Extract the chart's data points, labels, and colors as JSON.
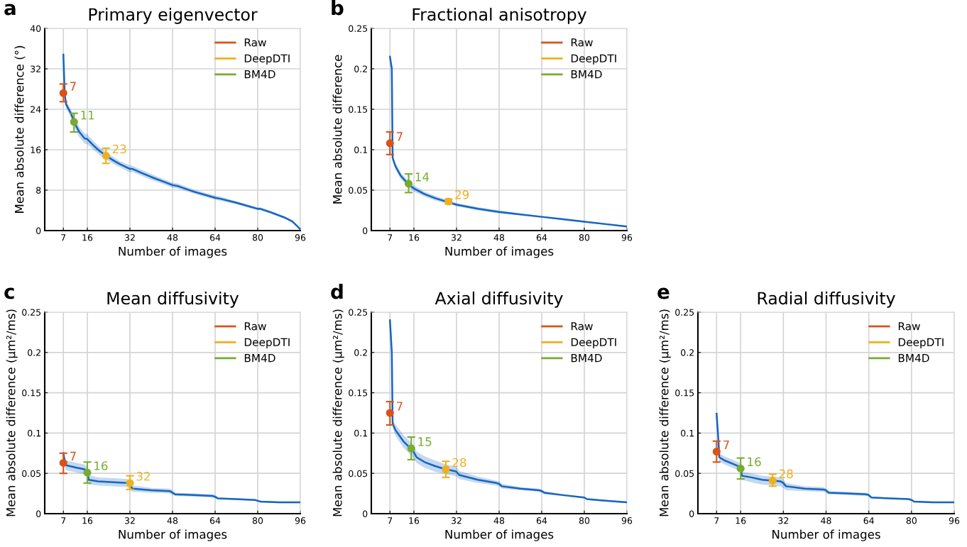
{
  "chart_data": [
    {
      "type": "line",
      "title": "Primary eigenvector",
      "xlabel": "Number of images",
      "ylabel": "Mean absolute difference (°)",
      "xlim": [
        0,
        96
      ],
      "ylim": [
        0,
        40
      ],
      "xticks": [
        7,
        16,
        32,
        48,
        64,
        80,
        96
      ],
      "yticks": [
        0,
        8,
        16,
        24,
        32,
        40
      ],
      "grid": true,
      "legend": "top right",
      "annotations": [
        "a",
        {
          "text": "7",
          "x": 7,
          "y": 27.2
        },
        {
          "text": "11",
          "x": 11,
          "y": 21.5
        },
        {
          "text": "23",
          "x": 23,
          "y": 14.8
        }
      ],
      "series": [
        {
          "color": "#1565c0",
          "marker": "none",
          "line_style": "solid",
          "x": [
            7,
            7.5,
            8,
            10,
            11,
            13,
            15,
            16,
            18,
            20,
            23,
            26,
            28,
            32,
            33,
            36,
            40,
            44,
            48,
            50,
            56,
            64,
            66,
            72,
            80,
            81,
            85,
            90,
            93,
            95,
            96
          ],
          "values": [
            34.8,
            27,
            25,
            23,
            21.5,
            19.5,
            18.2,
            18.1,
            17,
            16,
            14.8,
            13.8,
            13.2,
            12.2,
            12.2,
            11.5,
            10.6,
            9.8,
            9.0,
            8.8,
            7.7,
            6.5,
            6.3,
            5.5,
            4.3,
            4.3,
            3.6,
            2.6,
            1.8,
            0.8,
            0.2
          ],
          "lower": [
            34.8,
            26.5,
            24.3,
            22.2,
            20.6,
            18.5,
            17.2,
            17.1,
            16.1,
            15.2,
            14.1,
            13.1,
            12.6,
            11.5,
            11.6,
            10.9,
            10.0,
            9.3,
            8.5,
            8.3,
            7.3,
            6.1,
            5.9,
            5.2,
            4.0,
            4.0,
            3.3,
            2.4,
            1.6,
            0.7,
            0.1
          ],
          "upper": [
            34.8,
            27.5,
            25.7,
            23.8,
            22.4,
            20.5,
            19.2,
            19.1,
            17.9,
            16.8,
            15.5,
            14.5,
            13.8,
            12.9,
            12.8,
            12.1,
            11.2,
            10.3,
            9.5,
            9.3,
            8.1,
            6.9,
            6.7,
            5.8,
            4.6,
            4.6,
            3.9,
            2.8,
            2.0,
            0.9,
            0.3
          ]
        },
        {
          "type": "scatter",
          "name": "Raw",
          "color": "#d95319",
          "marker": "circle",
          "x": [
            7
          ],
          "values": [
            27.2
          ],
          "errors": [
            [
              25.5,
              29
            ]
          ]
        },
        {
          "type": "scatter",
          "name": "DeepDTI",
          "color": "#edb120",
          "marker": "circle",
          "x": [
            23
          ],
          "values": [
            14.8
          ],
          "errors": [
            [
              13.3,
              16.3
            ]
          ]
        },
        {
          "type": "scatter",
          "name": "BM4D",
          "color": "#77ac30",
          "marker": "circle",
          "x": [
            11
          ],
          "values": [
            21.5
          ],
          "errors": [
            [
              19.5,
              23.2
            ]
          ]
        }
      ]
    },
    {
      "type": "line",
      "title": "Fractional anisotropy",
      "xlabel": "Number of images",
      "ylabel": "Mean absolute difference",
      "xlim": [
        0,
        96
      ],
      "ylim": [
        0,
        0.25
      ],
      "xticks": [
        7,
        16,
        32,
        48,
        64,
        80,
        96
      ],
      "yticks": [
        0,
        0.05,
        0.1,
        0.15,
        0.2,
        0.25
      ],
      "grid": true,
      "legend": "top right",
      "annotations": [
        "b",
        {
          "text": "7",
          "x": 7,
          "y": 0.108
        },
        {
          "text": "14",
          "x": 14,
          "y": 0.058
        },
        {
          "text": "29",
          "x": 29,
          "y": 0.036
        }
      ],
      "series": [
        {
          "color": "#1565c0",
          "marker": "none",
          "line_style": "solid",
          "x": [
            7,
            7.7,
            8,
            9,
            11,
            14,
            16,
            20,
            24,
            29,
            32,
            40,
            48,
            56,
            64,
            72,
            80,
            88,
            96
          ],
          "values": [
            0.215,
            0.2,
            0.09,
            0.08,
            0.068,
            0.057,
            0.052,
            0.045,
            0.04,
            0.035,
            0.032,
            0.027,
            0.023,
            0.02,
            0.017,
            0.014,
            0.011,
            0.008,
            0.005
          ],
          "lower": [
            0.215,
            0.2,
            0.087,
            0.076,
            0.064,
            0.053,
            0.048,
            0.042,
            0.037,
            0.033,
            0.03,
            0.025,
            0.021,
            0.019,
            0.016,
            0.013,
            0.01,
            0.007,
            0.004
          ],
          "upper": [
            0.215,
            0.2,
            0.093,
            0.084,
            0.072,
            0.061,
            0.056,
            0.048,
            0.043,
            0.037,
            0.034,
            0.029,
            0.025,
            0.021,
            0.018,
            0.015,
            0.012,
            0.009,
            0.006
          ]
        },
        {
          "type": "scatter",
          "name": "Raw",
          "color": "#d95319",
          "marker": "circle",
          "x": [
            7
          ],
          "values": [
            0.108
          ],
          "errors": [
            [
              0.094,
              0.122
            ]
          ]
        },
        {
          "type": "scatter",
          "name": "DeepDTI",
          "color": "#edb120",
          "marker": "circle",
          "x": [
            29
          ],
          "values": [
            0.036
          ],
          "errors": [
            [
              0.033,
              0.039
            ]
          ]
        },
        {
          "type": "scatter",
          "name": "BM4D",
          "color": "#77ac30",
          "marker": "circle",
          "x": [
            14
          ],
          "values": [
            0.058
          ],
          "errors": [
            [
              0.047,
              0.07
            ]
          ]
        }
      ]
    },
    {
      "type": "line",
      "title": "Mean diffusivity",
      "xlabel": "Number of images",
      "ylabel": "Mean absolute difference (µm²/ms)",
      "xlim": [
        0,
        96
      ],
      "ylim": [
        0,
        0.25
      ],
      "xticks": [
        7,
        16,
        32,
        48,
        64,
        80,
        96
      ],
      "yticks": [
        0,
        0.05,
        0.1,
        0.15,
        0.2,
        0.25
      ],
      "grid": true,
      "legend": "top right",
      "annotations": [
        "c",
        {
          "text": "7",
          "x": 7,
          "y": 0.063
        },
        {
          "text": "16",
          "x": 16,
          "y": 0.051
        },
        {
          "text": "32",
          "x": 32,
          "y": 0.038
        }
      ],
      "series": [
        {
          "color": "#1565c0",
          "marker": "none",
          "line_style": "solid",
          "x": [
            7,
            7.7,
            8,
            12,
            15,
            16,
            16.5,
            20,
            26,
            31,
            32,
            33,
            40,
            47,
            48,
            49,
            56,
            63,
            64,
            65,
            72,
            79,
            80,
            81,
            88,
            96
          ],
          "values": [
            0.075,
            0.062,
            0.06,
            0.057,
            0.055,
            0.052,
            0.042,
            0.04,
            0.039,
            0.038,
            0.035,
            0.031,
            0.029,
            0.028,
            0.026,
            0.024,
            0.023,
            0.022,
            0.021,
            0.019,
            0.018,
            0.017,
            0.016,
            0.015,
            0.014,
            0.014
          ],
          "lower": [
            0.075,
            0.056,
            0.054,
            0.051,
            0.049,
            0.046,
            0.036,
            0.035,
            0.034,
            0.033,
            0.03,
            0.027,
            0.026,
            0.025,
            0.023,
            0.022,
            0.021,
            0.02,
            0.019,
            0.018,
            0.017,
            0.016,
            0.015,
            0.014,
            0.013,
            0.013
          ],
          "upper": [
            0.075,
            0.068,
            0.066,
            0.063,
            0.061,
            0.058,
            0.048,
            0.045,
            0.044,
            0.043,
            0.04,
            0.035,
            0.032,
            0.031,
            0.029,
            0.026,
            0.025,
            0.024,
            0.023,
            0.02,
            0.019,
            0.018,
            0.017,
            0.016,
            0.015,
            0.015
          ]
        },
        {
          "type": "scatter",
          "name": "Raw",
          "color": "#d95319",
          "marker": "circle",
          "x": [
            7
          ],
          "values": [
            0.063
          ],
          "errors": [
            [
              0.05,
              0.075
            ]
          ]
        },
        {
          "type": "scatter",
          "name": "DeepDTI",
          "color": "#edb120",
          "marker": "circle",
          "x": [
            32
          ],
          "values": [
            0.038
          ],
          "errors": [
            [
              0.03,
              0.047
            ]
          ]
        },
        {
          "type": "scatter",
          "name": "BM4D",
          "color": "#77ac30",
          "marker": "circle",
          "x": [
            16
          ],
          "values": [
            0.051
          ],
          "errors": [
            [
              0.038,
              0.064
            ]
          ]
        }
      ]
    },
    {
      "type": "line",
      "title": "Axial diffusivity",
      "xlabel": "Number of images",
      "ylabel": "Mean absolute difference (µm²/ms)",
      "xlim": [
        0,
        96
      ],
      "ylim": [
        0,
        0.25
      ],
      "xticks": [
        7,
        16,
        32,
        48,
        64,
        80,
        96
      ],
      "yticks": [
        0,
        0.05,
        0.1,
        0.15,
        0.2,
        0.25
      ],
      "grid": true,
      "legend": "top right",
      "annotations": [
        "d",
        {
          "text": "7",
          "x": 7,
          "y": 0.125
        },
        {
          "text": "15",
          "x": 15,
          "y": 0.081
        },
        {
          "text": "28",
          "x": 28,
          "y": 0.055
        }
      ],
      "series": [
        {
          "color": "#1565c0",
          "marker": "none",
          "line_style": "solid",
          "x": [
            7,
            7.7,
            8,
            9,
            12,
            15,
            16,
            17,
            20,
            24,
            28,
            31,
            32,
            33,
            40,
            47,
            48,
            49,
            56,
            63,
            64,
            65,
            72,
            80,
            81,
            88,
            96
          ],
          "values": [
            0.24,
            0.2,
            0.112,
            0.104,
            0.09,
            0.08,
            0.076,
            0.07,
            0.064,
            0.059,
            0.055,
            0.053,
            0.052,
            0.048,
            0.042,
            0.038,
            0.037,
            0.034,
            0.031,
            0.029,
            0.028,
            0.026,
            0.023,
            0.02,
            0.018,
            0.016,
            0.014
          ],
          "lower": [
            0.24,
            0.2,
            0.108,
            0.097,
            0.082,
            0.072,
            0.068,
            0.063,
            0.057,
            0.052,
            0.049,
            0.047,
            0.046,
            0.043,
            0.038,
            0.035,
            0.034,
            0.031,
            0.029,
            0.027,
            0.026,
            0.024,
            0.022,
            0.019,
            0.017,
            0.015,
            0.013
          ],
          "upper": [
            0.24,
            0.2,
            0.116,
            0.111,
            0.098,
            0.088,
            0.084,
            0.077,
            0.071,
            0.066,
            0.061,
            0.059,
            0.058,
            0.053,
            0.046,
            0.041,
            0.04,
            0.037,
            0.033,
            0.031,
            0.03,
            0.028,
            0.024,
            0.021,
            0.019,
            0.017,
            0.015
          ]
        },
        {
          "type": "scatter",
          "name": "Raw",
          "color": "#d95319",
          "marker": "circle",
          "x": [
            7
          ],
          "values": [
            0.125
          ],
          "errors": [
            [
              0.11,
              0.139
            ]
          ]
        },
        {
          "type": "scatter",
          "name": "DeepDTI",
          "color": "#edb120",
          "marker": "circle",
          "x": [
            28
          ],
          "values": [
            0.055
          ],
          "errors": [
            [
              0.045,
              0.065
            ]
          ]
        },
        {
          "type": "scatter",
          "name": "BM4D",
          "color": "#77ac30",
          "marker": "circle",
          "x": [
            15
          ],
          "values": [
            0.081
          ],
          "errors": [
            [
              0.067,
              0.095
            ]
          ]
        }
      ]
    },
    {
      "type": "line",
      "title": "Radial diffusivity",
      "xlabel": "Number of images",
      "ylabel": "Mean absolute difference (µm²/ms)",
      "xlim": [
        0,
        96
      ],
      "ylim": [
        0,
        0.25
      ],
      "xticks": [
        7,
        16,
        32,
        48,
        64,
        80,
        96
      ],
      "yticks": [
        0,
        0.05,
        0.1,
        0.15,
        0.2,
        0.25
      ],
      "grid": true,
      "legend": "top right",
      "annotations": [
        "e",
        {
          "text": "7",
          "x": 7,
          "y": 0.077
        },
        {
          "text": "16",
          "x": 16,
          "y": 0.056
        },
        {
          "text": "28",
          "x": 28,
          "y": 0.041
        }
      ],
      "series": [
        {
          "color": "#1565c0",
          "marker": "none",
          "line_style": "solid",
          "x": [
            7,
            7.7,
            8,
            10,
            13,
            15,
            16,
            16.5,
            20,
            24,
            28,
            31,
            32,
            33,
            40,
            47,
            48,
            49,
            56,
            63,
            64,
            65,
            72,
            79,
            80,
            81,
            88,
            96
          ],
          "values": [
            0.124,
            0.09,
            0.07,
            0.066,
            0.062,
            0.059,
            0.057,
            0.047,
            0.045,
            0.042,
            0.041,
            0.04,
            0.038,
            0.034,
            0.031,
            0.03,
            0.029,
            0.026,
            0.025,
            0.024,
            0.023,
            0.02,
            0.019,
            0.018,
            0.017,
            0.015,
            0.014,
            0.014
          ],
          "lower": [
            0.124,
            0.09,
            0.065,
            0.061,
            0.057,
            0.054,
            0.052,
            0.042,
            0.039,
            0.036,
            0.035,
            0.034,
            0.032,
            0.029,
            0.028,
            0.027,
            0.026,
            0.024,
            0.023,
            0.022,
            0.021,
            0.019,
            0.018,
            0.017,
            0.016,
            0.014,
            0.013,
            0.013
          ],
          "upper": [
            0.124,
            0.09,
            0.075,
            0.071,
            0.067,
            0.064,
            0.062,
            0.052,
            0.05,
            0.047,
            0.046,
            0.045,
            0.043,
            0.038,
            0.034,
            0.033,
            0.031,
            0.028,
            0.027,
            0.026,
            0.025,
            0.021,
            0.02,
            0.019,
            0.018,
            0.016,
            0.015,
            0.015
          ]
        },
        {
          "type": "scatter",
          "name": "Raw",
          "color": "#d95319",
          "marker": "circle",
          "x": [
            7
          ],
          "values": [
            0.077
          ],
          "errors": [
            [
              0.064,
              0.09
            ]
          ]
        },
        {
          "type": "scatter",
          "name": "DeepDTI",
          "color": "#edb120",
          "marker": "circle",
          "x": [
            28
          ],
          "values": [
            0.041
          ],
          "errors": [
            [
              0.034,
              0.049
            ]
          ]
        },
        {
          "type": "scatter",
          "name": "BM4D",
          "color": "#77ac30",
          "marker": "circle",
          "x": [
            16
          ],
          "values": [
            0.056
          ],
          "errors": [
            [
              0.043,
              0.069
            ]
          ]
        }
      ]
    }
  ]
}
